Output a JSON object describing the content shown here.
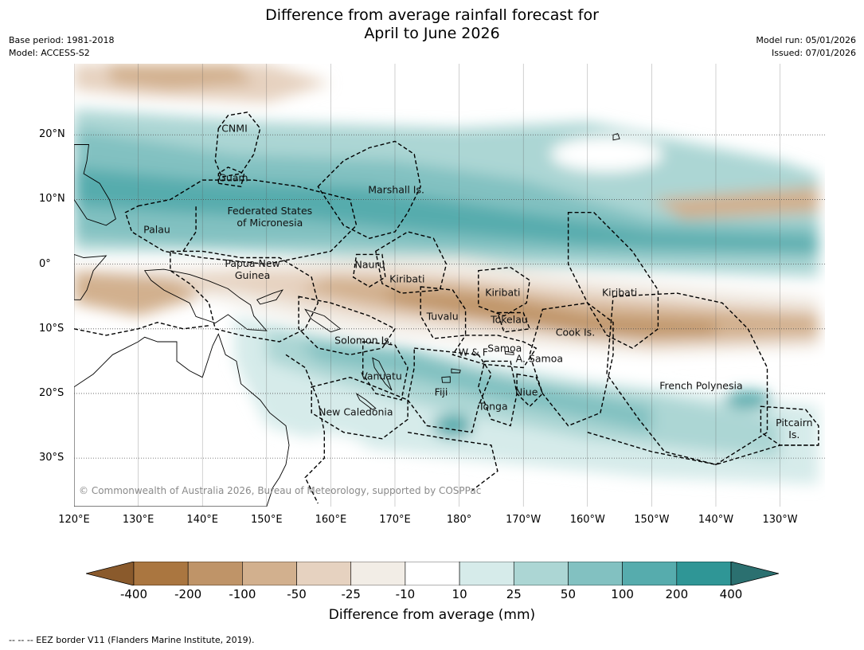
{
  "title_line1": "Difference from average rainfall forecast for",
  "title_line2": "April to June 2026",
  "base_period": "Base period: 1981-2018",
  "model": "Model: ACCESS-S2",
  "model_run": "Model run: 05/01/2026",
  "issued": "Issued: 07/01/2026",
  "lon_ticks": [
    "120°E",
    "130°E",
    "140°E",
    "150°E",
    "160°E",
    "170°E",
    "180°",
    "170°W",
    "160°W",
    "150°W",
    "140°W",
    "130°W"
  ],
  "lat_ticks": [
    "20°N",
    "10°N",
    "0°",
    "10°S",
    "20°S",
    "30°S"
  ],
  "regions": [
    {
      "name": "CNMI",
      "lon": 145,
      "lat": 21
    },
    {
      "name": "Guam",
      "lon": 144.8,
      "lat": 13.4
    },
    {
      "name": "Marshall Is.",
      "lon": 170.2,
      "lat": 11.5
    },
    {
      "name": "Federated States\nof Micronesia",
      "lon": 150.5,
      "lat": 7.3
    },
    {
      "name": "Palau",
      "lon": 132.9,
      "lat": 5.4
    },
    {
      "name": "Nauru",
      "lon": 166.1,
      "lat": 0
    },
    {
      "name": "Papua New\nGuinea",
      "lon": 147.8,
      "lat": -0.8
    },
    {
      "name": "Kiribati",
      "lon": 171.9,
      "lat": -2.3
    },
    {
      "name": "Kiribati",
      "lon": -173.2,
      "lat": -4.4
    },
    {
      "name": "Kiribati",
      "lon": -155,
      "lat": -4.4
    },
    {
      "name": "Tuvalu",
      "lon": 177.4,
      "lat": -8.1
    },
    {
      "name": "Tokelau",
      "lon": -172.2,
      "lat": -8.5
    },
    {
      "name": "Cook Is.",
      "lon": -161.9,
      "lat": -10.5
    },
    {
      "name": "Solomon Is.",
      "lon": 165.1,
      "lat": -11.7
    },
    {
      "name": "Samoa",
      "lon": -172.9,
      "lat": -13
    },
    {
      "name": "W & F",
      "lon": -177.8,
      "lat": -13.6
    },
    {
      "name": "A. Samoa",
      "lon": -167.5,
      "lat": -14.6
    },
    {
      "name": "Vanuatu",
      "lon": 167.9,
      "lat": -17.3
    },
    {
      "name": "French Polynesia",
      "lon": -142.3,
      "lat": -18.8
    },
    {
      "name": "Fiji",
      "lon": 177.2,
      "lat": -19.8
    },
    {
      "name": "Niue",
      "lon": -169.5,
      "lat": -19.8
    },
    {
      "name": "Tonga",
      "lon": -174.7,
      "lat": -22
    },
    {
      "name": "New Caledonia",
      "lon": 163.9,
      "lat": -22.9
    },
    {
      "name": "Pitcairn\nIs.",
      "lon": -127.8,
      "lat": -25.4
    }
  ],
  "copyright": "© Commonwealth of Australia 2026, Bureau of Meteorology, supported by COSPPac",
  "colorbar": {
    "label": "Difference from average (mm)",
    "ticks": [
      "-400",
      "-200",
      "-100",
      "-50",
      "-25",
      "-10",
      "10",
      "25",
      "50",
      "100",
      "200",
      "400"
    ],
    "colors": [
      "#8a5a2c",
      "#aa7640",
      "#bf9468",
      "#d2b08e",
      "#e6d2c0",
      "#f2ede6",
      "#ffffff",
      "#d6ebea",
      "#acd6d4",
      "#82c1c1",
      "#56acad",
      "#2f9696",
      "#2b7070"
    ]
  },
  "eez_note": "--  --  -- EEZ border V11 (Flanders Marine Institute, 2019)."
}
